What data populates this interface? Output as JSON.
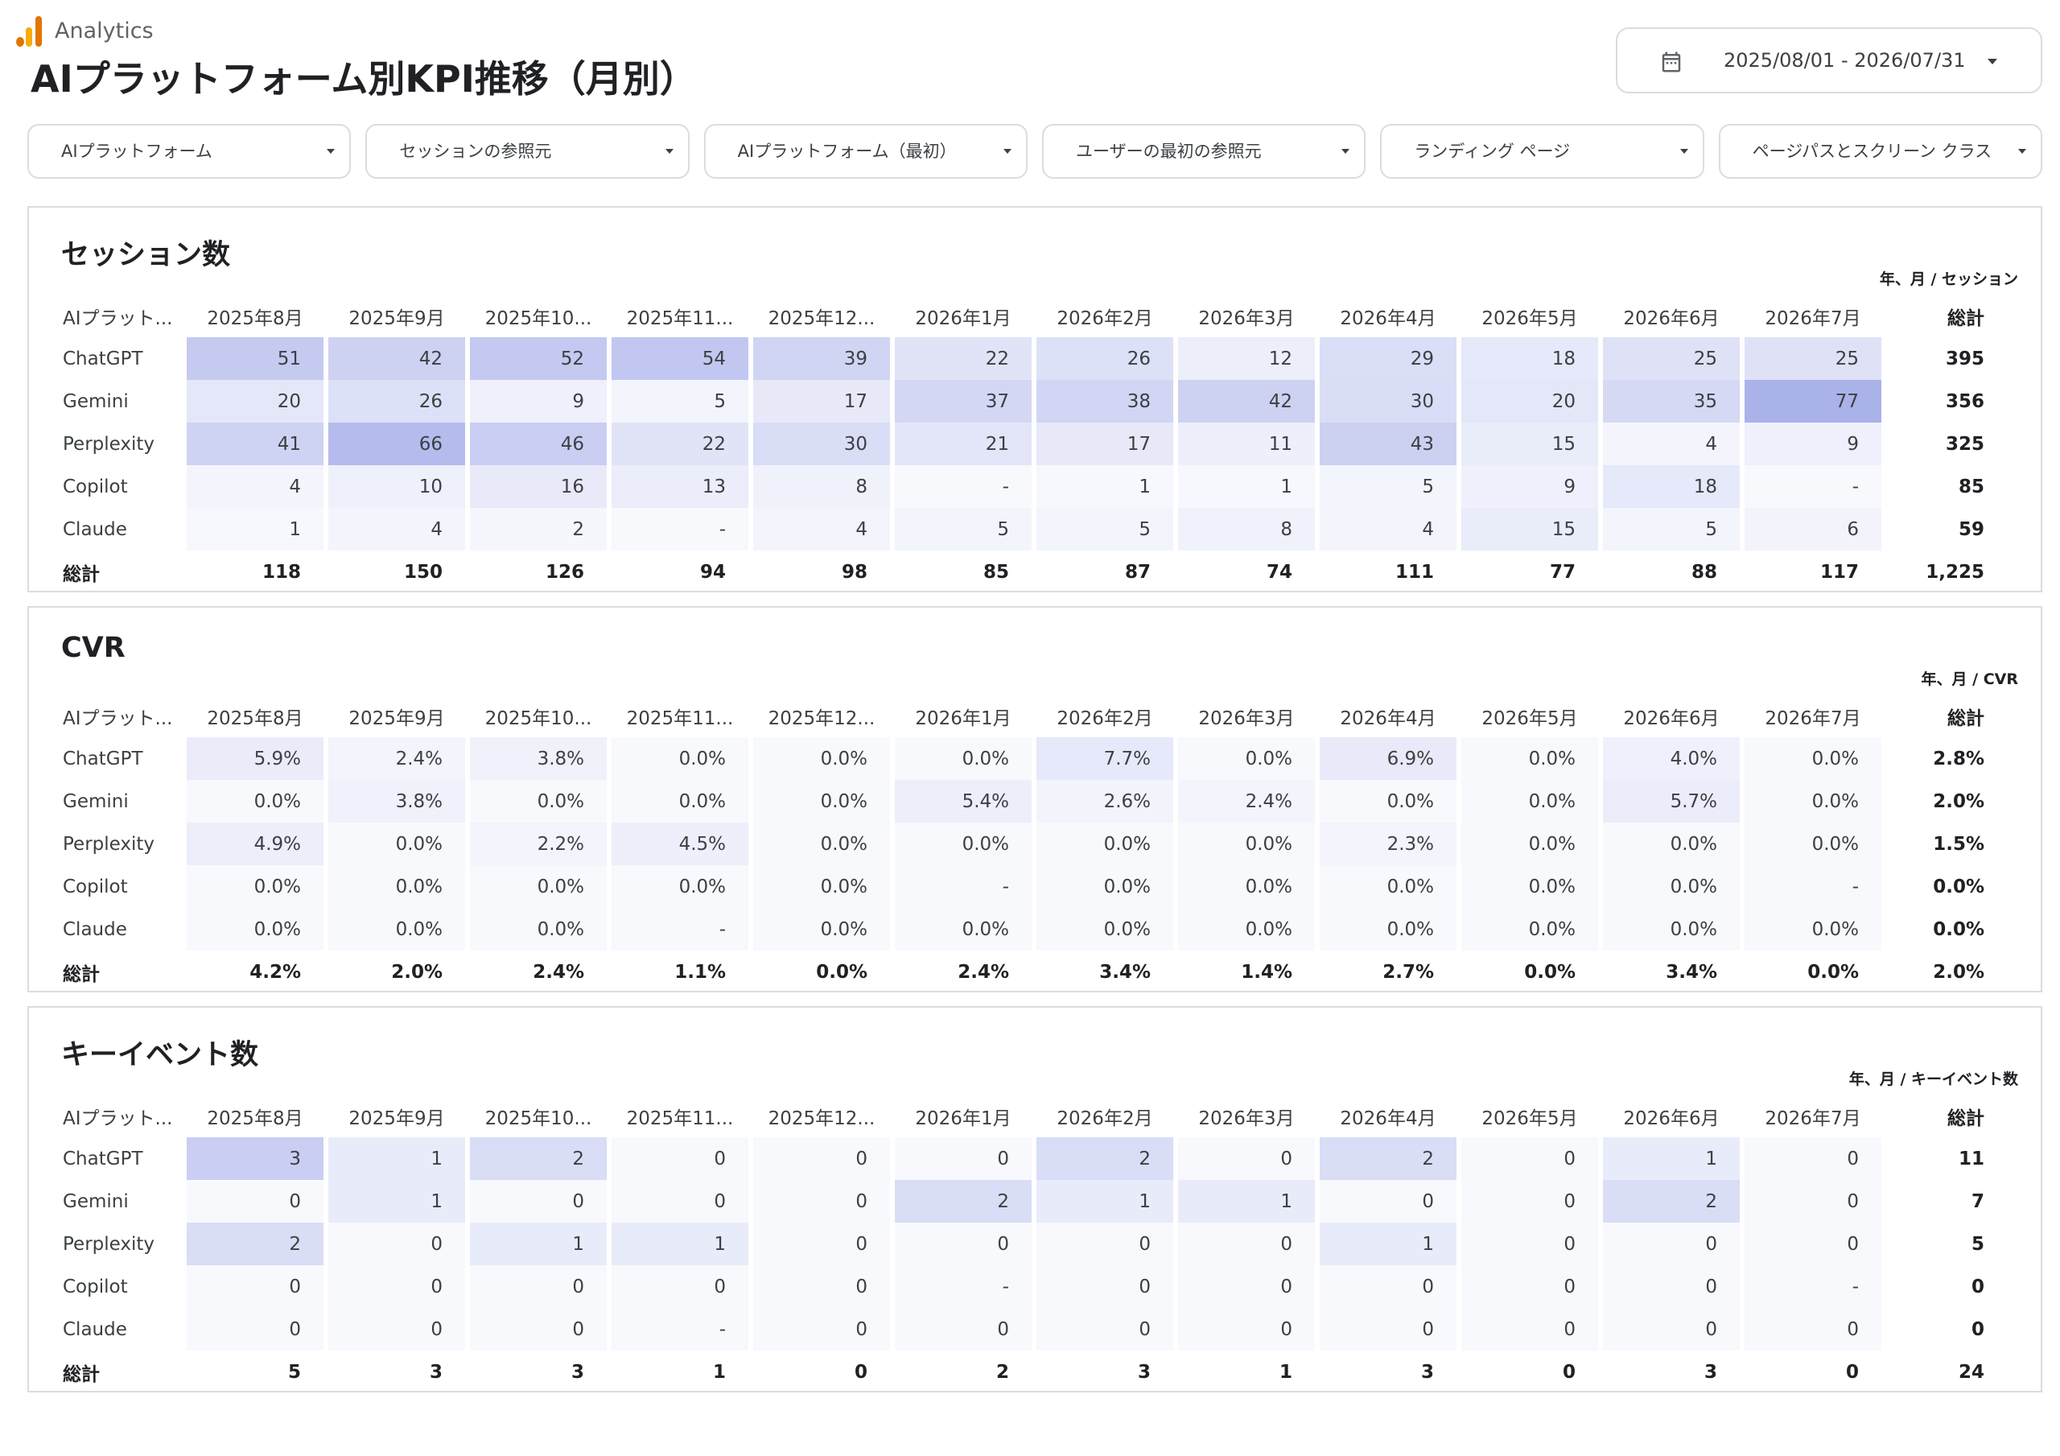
{
  "brand": {
    "name": "Analytics",
    "icon": "analytics-logo-icon"
  },
  "page_title": "AIプラットフォーム別KPI推移（月別）",
  "date_range": {
    "value": "2025/08/01 - 2026/07/31",
    "icon": "calendar-icon"
  },
  "filters": [
    {
      "label": "AIプラットフォーム"
    },
    {
      "label": "セッションの参照元"
    },
    {
      "label": "AIプラットフォーム（最初）"
    },
    {
      "label": "ユーザーの最初の参照元"
    },
    {
      "label": "ランディング ページ"
    },
    {
      "label": "ページパスとスクリーン クラス"
    }
  ],
  "columns": {
    "row_header": "AIプラット...",
    "months": [
      "2025年8月",
      "2025年9月",
      "2025年10...",
      "2025年11...",
      "2025年12...",
      "2026年1月",
      "2026年2月",
      "2026年3月",
      "2026年4月",
      "2026年5月",
      "2026年6月",
      "2026年7月"
    ],
    "total": "総計"
  },
  "colors": {
    "heat_base": "#f8f9fd",
    "heat_max": "#aab2ea",
    "border": "#dadce0"
  },
  "panels": [
    {
      "title": "セッション数",
      "subtitle": "年、月 / セッション",
      "rows": [
        {
          "name": "ChatGPT",
          "values": [
            "51",
            "42",
            "52",
            "54",
            "39",
            "22",
            "26",
            "12",
            "29",
            "18",
            "25",
            "25"
          ],
          "heat": [
            0.66,
            0.55,
            0.68,
            0.7,
            0.51,
            0.29,
            0.34,
            0.16,
            0.38,
            0.23,
            0.32,
            0.32
          ],
          "total": "395"
        },
        {
          "name": "Gemini",
          "values": [
            "20",
            "26",
            "9",
            "5",
            "17",
            "37",
            "38",
            "42",
            "30",
            "20",
            "35",
            "77"
          ],
          "heat": [
            0.26,
            0.34,
            0.12,
            0.06,
            0.22,
            0.48,
            0.49,
            0.55,
            0.39,
            0.26,
            0.45,
            1.0
          ],
          "total": "356"
        },
        {
          "name": "Perplexity",
          "values": [
            "41",
            "66",
            "46",
            "22",
            "30",
            "21",
            "17",
            "11",
            "43",
            "15",
            "4",
            "9"
          ],
          "heat": [
            0.53,
            0.86,
            0.6,
            0.29,
            0.39,
            0.27,
            0.22,
            0.14,
            0.56,
            0.19,
            0.05,
            0.12
          ],
          "total": "325"
        },
        {
          "name": "Copilot",
          "values": [
            "4",
            "10",
            "16",
            "13",
            "8",
            "-",
            "1",
            "1",
            "5",
            "9",
            "18",
            "-"
          ],
          "heat": [
            0.05,
            0.13,
            0.21,
            0.17,
            0.1,
            0,
            0.01,
            0.01,
            0.06,
            0.12,
            0.23,
            0
          ],
          "total": "85"
        },
        {
          "name": "Claude",
          "values": [
            "1",
            "4",
            "2",
            "-",
            "4",
            "5",
            "5",
            "8",
            "4",
            "15",
            "5",
            "6"
          ],
          "heat": [
            0.01,
            0.05,
            0.03,
            0,
            0.05,
            0.06,
            0.06,
            0.1,
            0.05,
            0.19,
            0.06,
            0.08
          ],
          "total": "59"
        }
      ],
      "total_row": {
        "label": "総計",
        "values": [
          "118",
          "150",
          "126",
          "94",
          "98",
          "85",
          "87",
          "74",
          "111",
          "77",
          "88",
          "117"
        ],
        "total": "1,225"
      }
    },
    {
      "title": "CVR",
      "subtitle": "年、月 / CVR",
      "rows": [
        {
          "name": "ChatGPT",
          "values": [
            "5.9%",
            "2.4%",
            "3.8%",
            "0.0%",
            "0.0%",
            "0.0%",
            "7.7%",
            "0.0%",
            "6.9%",
            "0.0%",
            "4.0%",
            "0.0%"
          ],
          "heat": [
            0.18,
            0.07,
            0.11,
            0,
            0,
            0,
            0.23,
            0,
            0.21,
            0,
            0.12,
            0
          ],
          "total": "2.8%"
        },
        {
          "name": "Gemini",
          "values": [
            "0.0%",
            "3.8%",
            "0.0%",
            "0.0%",
            "0.0%",
            "5.4%",
            "2.6%",
            "2.4%",
            "0.0%",
            "0.0%",
            "5.7%",
            "0.0%"
          ],
          "heat": [
            0,
            0.11,
            0,
            0,
            0,
            0.16,
            0.08,
            0.07,
            0,
            0,
            0.17,
            0
          ],
          "total": "2.0%"
        },
        {
          "name": "Perplexity",
          "values": [
            "4.9%",
            "0.0%",
            "2.2%",
            "4.5%",
            "0.0%",
            "0.0%",
            "0.0%",
            "0.0%",
            "2.3%",
            "0.0%",
            "0.0%",
            "0.0%"
          ],
          "heat": [
            0.15,
            0,
            0.07,
            0.14,
            0,
            0,
            0,
            0,
            0.07,
            0,
            0,
            0
          ],
          "total": "1.5%"
        },
        {
          "name": "Copilot",
          "values": [
            "0.0%",
            "0.0%",
            "0.0%",
            "0.0%",
            "0.0%",
            "-",
            "0.0%",
            "0.0%",
            "0.0%",
            "0.0%",
            "0.0%",
            "-"
          ],
          "heat": [
            0,
            0,
            0,
            0,
            0,
            0,
            0,
            0,
            0,
            0,
            0,
            0
          ],
          "total": "0.0%"
        },
        {
          "name": "Claude",
          "values": [
            "0.0%",
            "0.0%",
            "0.0%",
            "-",
            "0.0%",
            "0.0%",
            "0.0%",
            "0.0%",
            "0.0%",
            "0.0%",
            "0.0%",
            "0.0%"
          ],
          "heat": [
            0,
            0,
            0,
            0,
            0,
            0,
            0,
            0,
            0,
            0,
            0,
            0
          ],
          "total": "0.0%"
        }
      ],
      "total_row": {
        "label": "総計",
        "values": [
          "4.2%",
          "2.0%",
          "2.4%",
          "1.1%",
          "0.0%",
          "2.4%",
          "3.4%",
          "1.4%",
          "2.7%",
          "0.0%",
          "3.4%",
          "0.0%"
        ],
        "total": "2.0%"
      }
    },
    {
      "title": "キーイベント数",
      "subtitle": "年、月 / キーイベント数",
      "rows": [
        {
          "name": "ChatGPT",
          "values": [
            "3",
            "1",
            "2",
            "0",
            "0",
            "0",
            "2",
            "0",
            "2",
            "0",
            "1",
            "0"
          ],
          "heat": [
            0.6,
            0.2,
            0.4,
            0,
            0,
            0,
            0.4,
            0,
            0.4,
            0,
            0.2,
            0
          ],
          "total": "11"
        },
        {
          "name": "Gemini",
          "values": [
            "0",
            "1",
            "0",
            "0",
            "0",
            "2",
            "1",
            "1",
            "0",
            "0",
            "2",
            "0"
          ],
          "heat": [
            0,
            0.2,
            0,
            0,
            0,
            0.4,
            0.2,
            0.2,
            0,
            0,
            0.4,
            0
          ],
          "total": "7"
        },
        {
          "name": "Perplexity",
          "values": [
            "2",
            "0",
            "1",
            "1",
            "0",
            "0",
            "0",
            "0",
            "1",
            "0",
            "0",
            "0"
          ],
          "heat": [
            0.4,
            0,
            0.2,
            0.2,
            0,
            0,
            0,
            0,
            0.2,
            0,
            0,
            0
          ],
          "total": "5"
        },
        {
          "name": "Copilot",
          "values": [
            "0",
            "0",
            "0",
            "0",
            "0",
            "-",
            "0",
            "0",
            "0",
            "0",
            "0",
            "-"
          ],
          "heat": [
            0,
            0,
            0,
            0,
            0,
            0,
            0,
            0,
            0,
            0,
            0,
            0
          ],
          "total": "0"
        },
        {
          "name": "Claude",
          "values": [
            "0",
            "0",
            "0",
            "-",
            "0",
            "0",
            "0",
            "0",
            "0",
            "0",
            "0",
            "0"
          ],
          "heat": [
            0,
            0,
            0,
            0,
            0,
            0,
            0,
            0,
            0,
            0,
            0,
            0
          ],
          "total": "0"
        }
      ],
      "total_row": {
        "label": "総計",
        "values": [
          "5",
          "3",
          "3",
          "1",
          "0",
          "2",
          "3",
          "1",
          "3",
          "0",
          "3",
          "0"
        ],
        "total": "24"
      }
    }
  ]
}
